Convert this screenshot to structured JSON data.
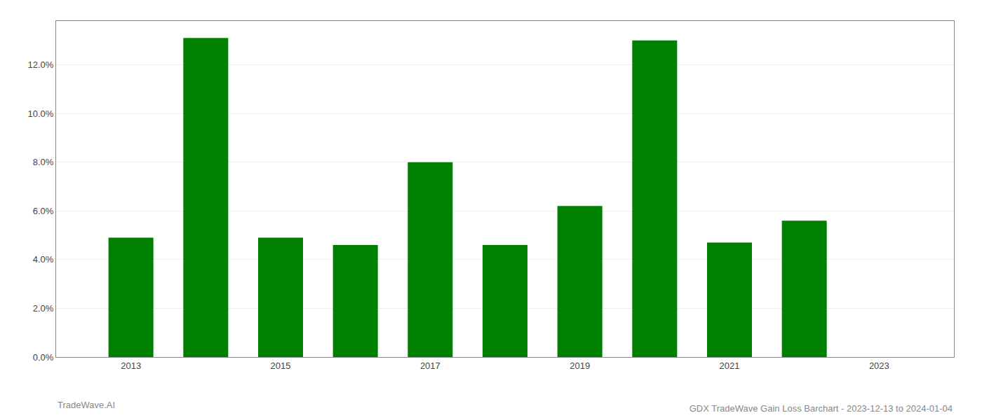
{
  "chart_data": {
    "type": "bar",
    "title": "GDX TradeWave Gain Loss Barchart - 2023-12-13 to 2024-01-04",
    "annotations": [
      "TradeWave.AI"
    ],
    "x": [
      2013,
      2014,
      2015,
      2016,
      2017,
      2018,
      2019,
      2020,
      2021,
      2022,
      2023
    ],
    "values": [
      0.049,
      0.131,
      0.049,
      0.046,
      0.08,
      0.046,
      0.062,
      0.13,
      0.047,
      0.056,
      0.0
    ],
    "color": "#008000",
    "xlim": [
      2012.0,
      2024.0
    ],
    "xticks": [
      2013,
      2015,
      2017,
      2019,
      2021,
      2023
    ],
    "ylim": [
      0,
      0.138
    ],
    "yticks": [
      {
        "value": 0.0,
        "label": "0.0%"
      },
      {
        "value": 0.02,
        "label": "2.0%"
      },
      {
        "value": 0.04,
        "label": "4.0%"
      },
      {
        "value": 0.06,
        "label": "6.0%"
      },
      {
        "value": 0.08,
        "label": "8.0%"
      },
      {
        "value": 0.1,
        "label": "10.0%"
      },
      {
        "value": 0.12,
        "label": "12.0%"
      }
    ],
    "grid": true
  }
}
